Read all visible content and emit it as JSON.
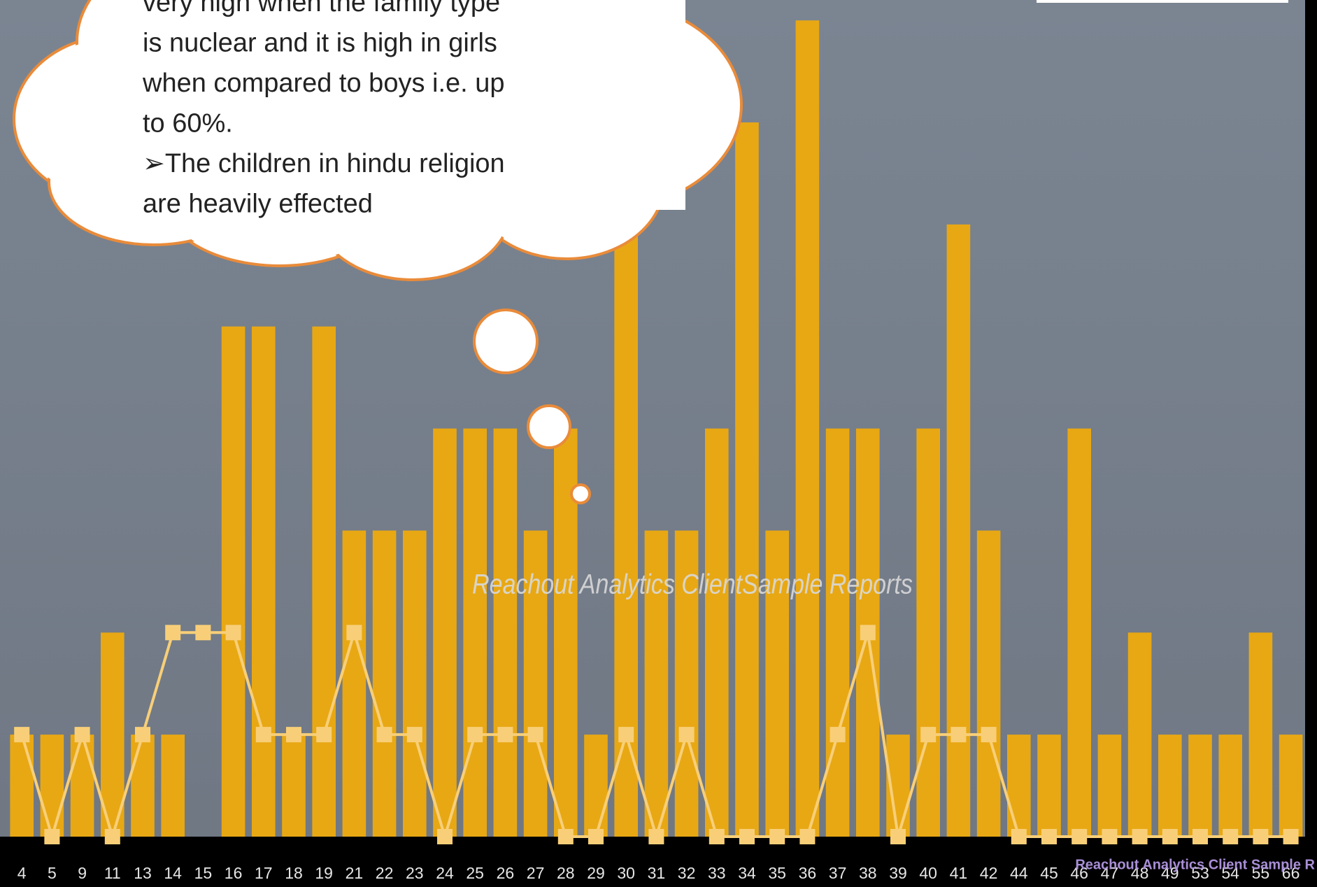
{
  "chart_data": {
    "type": "bar",
    "categories": [
      "4",
      "5",
      "9",
      "11",
      "13",
      "14",
      "15",
      "16",
      "17",
      "18",
      "19",
      "21",
      "22",
      "23",
      "24",
      "25",
      "26",
      "27",
      "28",
      "29",
      "30",
      "31",
      "32",
      "33",
      "34",
      "35",
      "36",
      "37",
      "38",
      "39",
      "40",
      "41",
      "42",
      "44",
      "45",
      "46",
      "47",
      "48",
      "49",
      "53",
      "54",
      "55",
      "66"
    ],
    "series": [
      {
        "type": "bar",
        "color": "#e8a814",
        "values": [
          1,
          1,
          1,
          2,
          1,
          1,
          0,
          5,
          5,
          1,
          5,
          3,
          3,
          3,
          4,
          4,
          4,
          3,
          4,
          1,
          6,
          3,
          3,
          4,
          7,
          3,
          8,
          4,
          4,
          1,
          4,
          6,
          3,
          1,
          1,
          4,
          1,
          2,
          1,
          1,
          1,
          2,
          1
        ]
      },
      {
        "type": "line",
        "color": "#f8cf78",
        "values": [
          1,
          0,
          1,
          0,
          1,
          2,
          2,
          2,
          1,
          1,
          1,
          2,
          1,
          1,
          0,
          1,
          1,
          1,
          0,
          0,
          1,
          0,
          1,
          0,
          0,
          0,
          0,
          1,
          2,
          0,
          1,
          1,
          1,
          0,
          0,
          0,
          0,
          0,
          0,
          0,
          0,
          0,
          0
        ]
      }
    ],
    "ylim": [
      0,
      8.2
    ],
    "callout": [
      "very high when the family type",
      "is nuclear and it is high in girls",
      "when compared to boys i.e. up",
      "to 60%.",
      "➢The children in hindu religion",
      "are heavily effected"
    ],
    "watermark": "Reachout Analytics ClientSample  Reports",
    "footer": "Reachout Analytics  Client Sample R"
  }
}
